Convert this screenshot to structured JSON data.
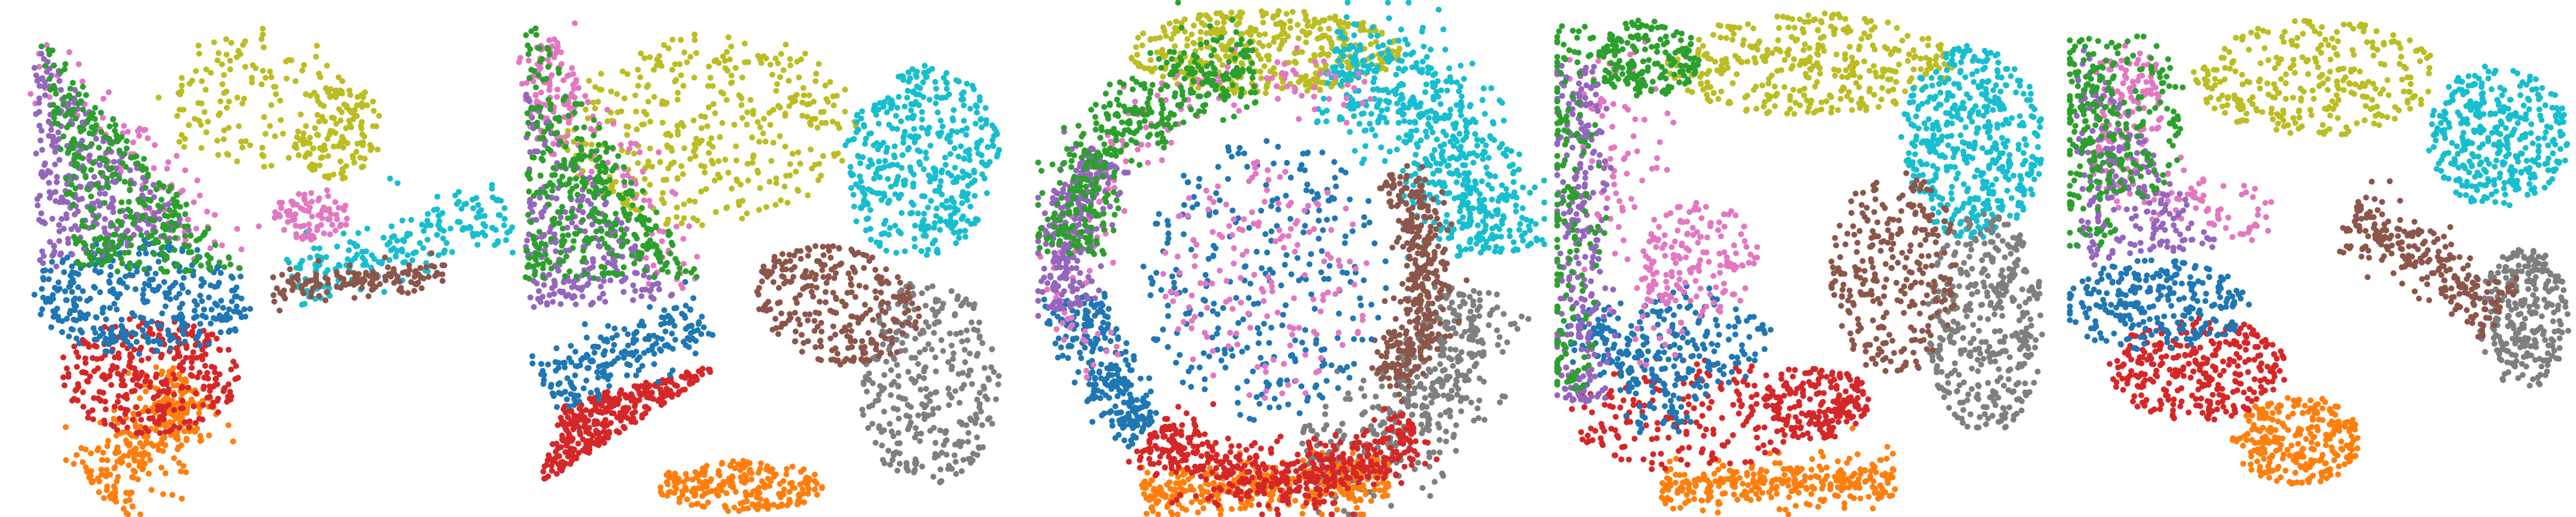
{
  "figure": {
    "background": "#ffffff",
    "note": ""
  },
  "palette": {
    "blue": "#1f77b4",
    "orange": "#ff7f0e",
    "green": "#2ca02c",
    "red": "#d62728",
    "purple": "#9467bd",
    "brown": "#8c564b",
    "pink": "#e377c2",
    "gray": "#7f7f7f",
    "olive": "#bcbd22",
    "cyan": "#17becf"
  },
  "chart_data": [
    {
      "type": "scatter",
      "title": "",
      "xlabel": "",
      "ylabel": "",
      "axes": "off",
      "grid": false,
      "legend": "none",
      "clusters": [
        {
          "color": "olive",
          "points": 260
        },
        {
          "color": "green",
          "points": 320
        },
        {
          "color": "purple",
          "points": 320
        },
        {
          "color": "pink",
          "points": 180
        },
        {
          "color": "blue",
          "points": 360
        },
        {
          "color": "red",
          "points": 320
        },
        {
          "color": "orange",
          "points": 300
        },
        {
          "color": "cyan",
          "points": 200
        },
        {
          "color": "brown",
          "points": 140
        }
      ]
    },
    {
      "type": "scatter",
      "title": "",
      "xlabel": "",
      "ylabel": "",
      "axes": "off",
      "grid": false,
      "legend": "none",
      "clusters": [
        {
          "color": "olive",
          "points": 380
        },
        {
          "color": "green",
          "points": 360
        },
        {
          "color": "purple",
          "points": 260
        },
        {
          "color": "pink",
          "points": 180
        },
        {
          "color": "blue",
          "points": 200
        },
        {
          "color": "red",
          "points": 340
        },
        {
          "color": "orange",
          "points": 220
        },
        {
          "color": "cyan",
          "points": 420
        },
        {
          "color": "brown",
          "points": 280
        },
        {
          "color": "gray",
          "points": 320
        }
      ]
    },
    {
      "type": "scatter",
      "title": "",
      "xlabel": "",
      "ylabel": "",
      "axes": "off",
      "grid": false,
      "legend": "none",
      "clusters": [
        {
          "color": "olive",
          "points": 420
        },
        {
          "color": "green",
          "points": 420
        },
        {
          "color": "purple",
          "points": 300
        },
        {
          "color": "pink",
          "points": 320
        },
        {
          "color": "blue",
          "points": 560
        },
        {
          "color": "red",
          "points": 520
        },
        {
          "color": "orange",
          "points": 360
        },
        {
          "color": "cyan",
          "points": 600
        },
        {
          "color": "brown",
          "points": 360
        },
        {
          "color": "gray",
          "points": 460
        }
      ]
    },
    {
      "type": "scatter",
      "title": "",
      "xlabel": "",
      "ylabel": "",
      "axes": "off",
      "grid": false,
      "legend": "none",
      "clusters": [
        {
          "color": "olive",
          "points": 360
        },
        {
          "color": "green",
          "points": 340
        },
        {
          "color": "purple",
          "points": 300
        },
        {
          "color": "pink",
          "points": 260
        },
        {
          "color": "blue",
          "points": 300
        },
        {
          "color": "red",
          "points": 380
        },
        {
          "color": "orange",
          "points": 300
        },
        {
          "color": "cyan",
          "points": 460
        },
        {
          "color": "brown",
          "points": 280
        },
        {
          "color": "gray",
          "points": 380
        }
      ]
    },
    {
      "type": "scatter",
      "title": "",
      "xlabel": "",
      "ylabel": "",
      "axes": "off",
      "grid": false,
      "legend": "none",
      "clusters": [
        {
          "color": "olive",
          "points": 300
        },
        {
          "color": "green",
          "points": 280
        },
        {
          "color": "purple",
          "points": 240
        },
        {
          "color": "pink",
          "points": 200
        },
        {
          "color": "blue",
          "points": 260
        },
        {
          "color": "red",
          "points": 320
        },
        {
          "color": "orange",
          "points": 260
        },
        {
          "color": "cyan",
          "points": 360
        },
        {
          "color": "brown",
          "points": 240
        },
        {
          "color": "gray",
          "points": 260
        }
      ]
    }
  ]
}
